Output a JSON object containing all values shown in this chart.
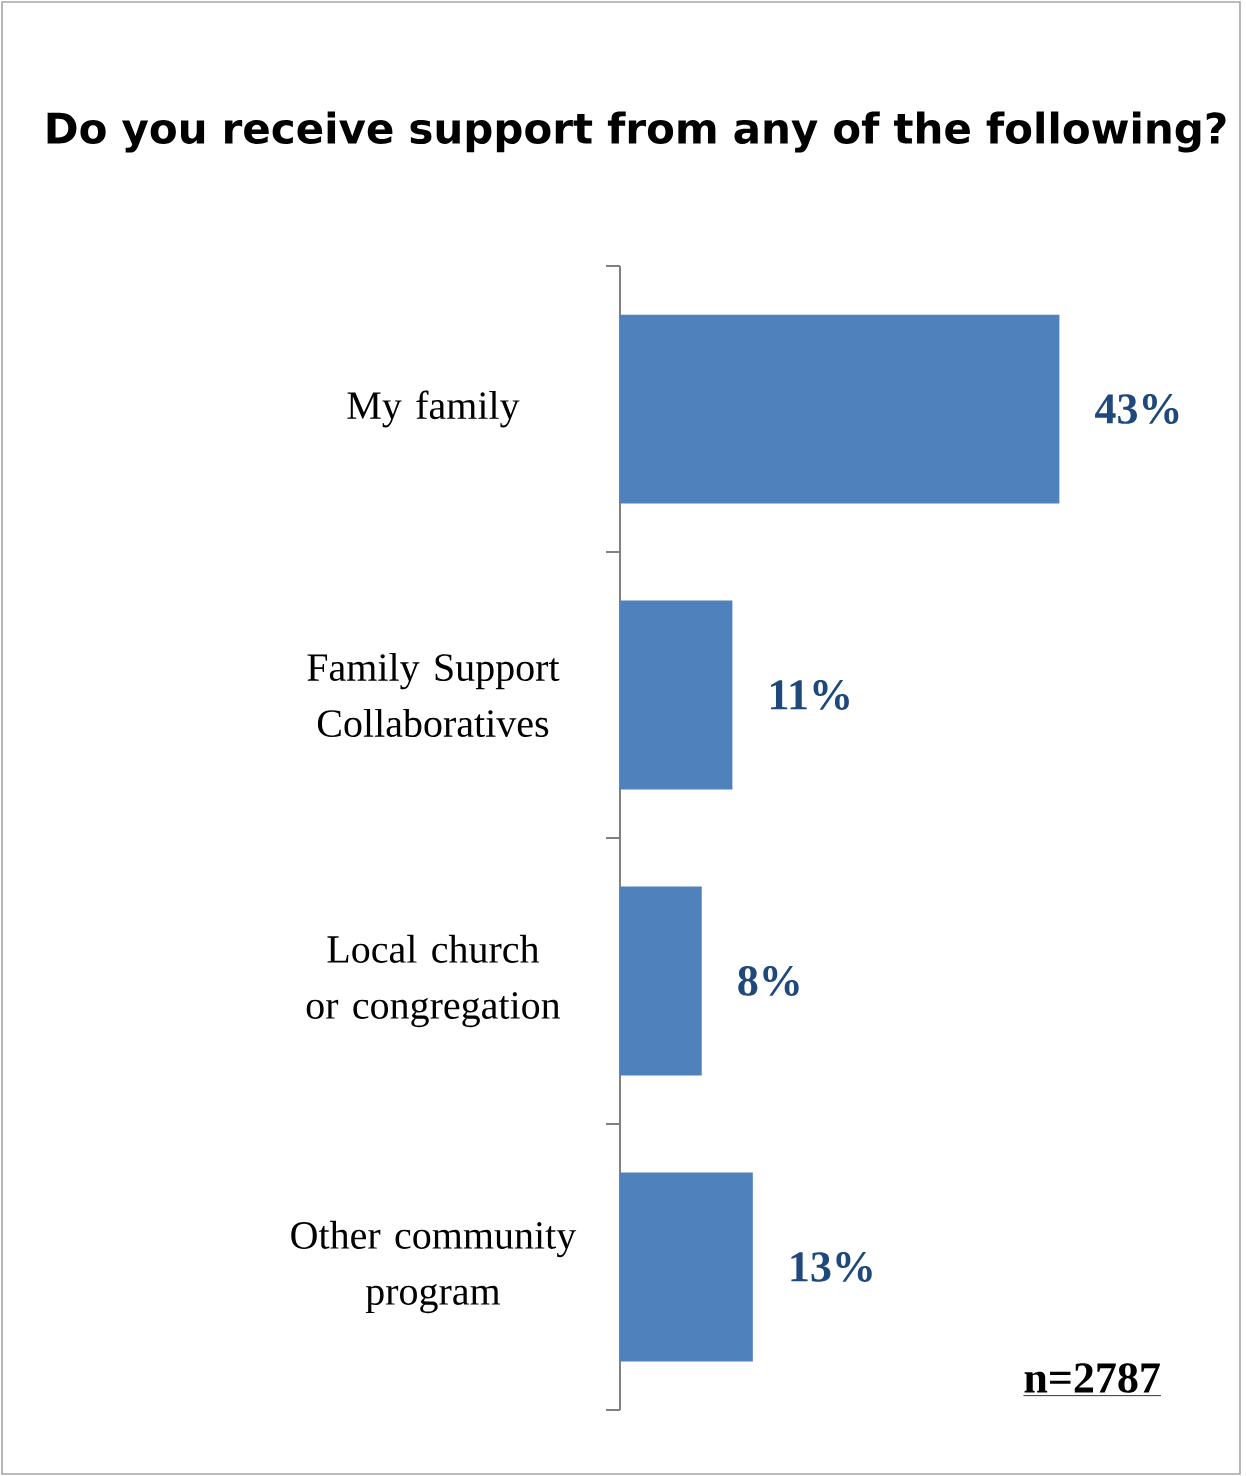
{
  "chart_data": {
    "type": "bar",
    "orientation": "horizontal",
    "title": "Do you receive support from any of the following?",
    "categories": [
      "My family",
      "Family Support Collaboratives",
      "Local church or congregation",
      "Other community program"
    ],
    "values": [
      43,
      11,
      8,
      13
    ],
    "value_labels": [
      "43%",
      "11%",
      "8%",
      "13%"
    ],
    "color": "#4f81bd",
    "annotations": [
      "n=2787"
    ]
  }
}
